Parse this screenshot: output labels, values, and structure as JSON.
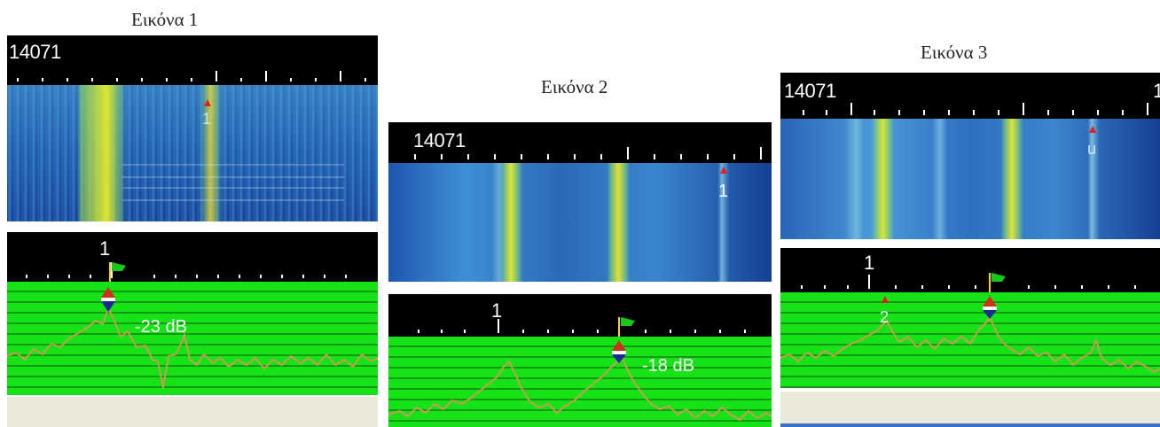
{
  "figures": [
    {
      "caption": "Εικόνα 1",
      "frequency": "14071",
      "waterfall_markers": [
        "1"
      ],
      "channel_label": "1",
      "signal_level": "-23 dB"
    },
    {
      "caption": "Εικόνα 2",
      "frequency": "14071",
      "waterfall_markers": [
        "1"
      ],
      "channel_label": "1",
      "signal_level": "-18 dB"
    },
    {
      "caption": "Εικόνα 3",
      "frequency": "14071",
      "frequency_cut": "1",
      "waterfall_markers": [
        "u"
      ],
      "channel_label": "1",
      "spectrum_marker": "2"
    }
  ],
  "colors": {
    "waterfall_dark": "#0c1f66",
    "waterfall_mid": "#2f7fc8",
    "signal": "#d8e82a",
    "spectrum_bg": "#16e316",
    "trace": "#c79a55",
    "toolbar_bg": "#000000",
    "footer_bg": "#ece9d8"
  },
  "icons": [
    "flag-icon",
    "cursor-marker-icon",
    "red-triangle-marker-icon"
  ]
}
